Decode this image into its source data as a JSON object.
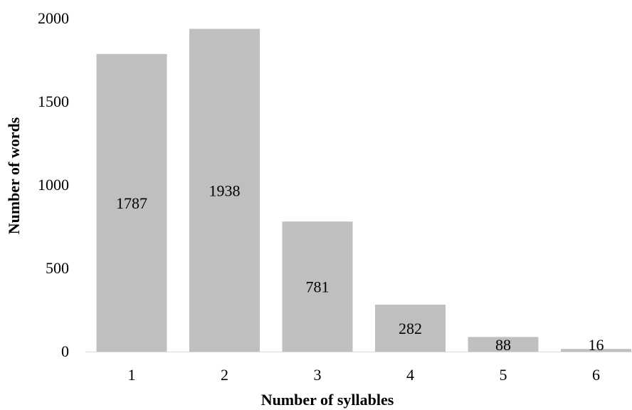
{
  "chart_data": {
    "type": "bar",
    "categories": [
      "1",
      "2",
      "3",
      "4",
      "5",
      "6"
    ],
    "values": [
      1787,
      1938,
      781,
      282,
      88,
      16
    ],
    "data_labels": [
      "1787",
      "1938",
      "781",
      "282",
      "88",
      "16"
    ],
    "title": "",
    "xlabel": "Number of syllables",
    "ylabel": "Number of words",
    "ylim": [
      0,
      2000
    ],
    "yticks": [
      0,
      500,
      1000,
      1500,
      2000
    ],
    "ytick_labels": [
      "0",
      "500",
      "1000",
      "1500",
      "2000"
    ],
    "grid": false,
    "legend": "none",
    "bar_color": "#bfbfbf",
    "axis_color": "#d9d9d9"
  }
}
